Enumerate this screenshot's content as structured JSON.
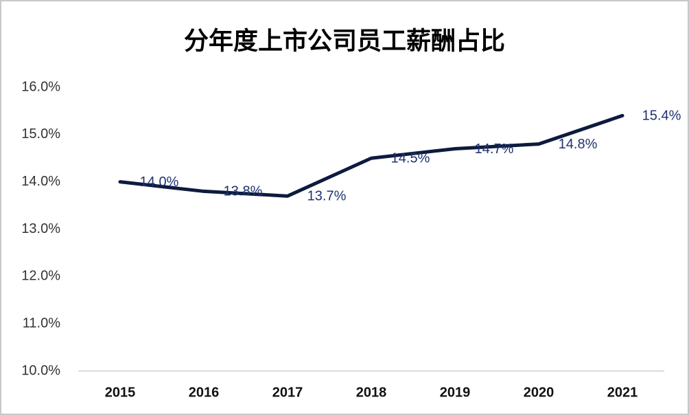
{
  "chart_data": {
    "type": "line",
    "title": "分年度上市公司员工薪酬占比",
    "categories": [
      "2015",
      "2016",
      "2017",
      "2018",
      "2019",
      "2020",
      "2021"
    ],
    "values": [
      14.0,
      13.8,
      13.7,
      14.5,
      14.7,
      14.8,
      15.4
    ],
    "value_labels": [
      "14.0%",
      "13.8%",
      "13.7%",
      "14.5%",
      "14.7%",
      "14.8%",
      "15.4%"
    ],
    "color": "#0d1b3e",
    "label_color": "#1f3270",
    "ylim": [
      10,
      16
    ],
    "yticks": [
      {
        "value": 10,
        "label": "10.0%"
      },
      {
        "value": 11,
        "label": "11.0%"
      },
      {
        "value": 12,
        "label": "12.0%"
      },
      {
        "value": 13,
        "label": "13.0%"
      },
      {
        "value": 14,
        "label": "14.0%"
      },
      {
        "value": 15,
        "label": "15.0%"
      },
      {
        "value": 16,
        "label": "16.0%"
      }
    ],
    "grid": false
  }
}
